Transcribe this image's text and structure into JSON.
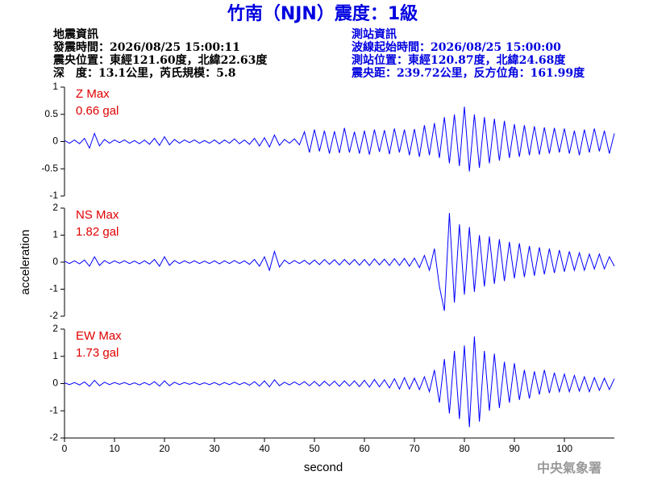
{
  "header": {
    "title": "竹南（NJN）震度：1級",
    "event_info": [
      "地震資訊",
      "發震時間：2026/08/25 15:00:11",
      "震央位置：東經121.60度，北緯22.63度",
      "深　度：13.1公里，芮氏規模：5.8"
    ],
    "station_info": [
      "測站資訊",
      "波線起始時間：2026/08/25 15:00:00",
      "測站位置：東經120.87度，北緯24.68度",
      "震央距：239.72公里，反方位角：161.99度"
    ],
    "footer": "中央氣象署"
  },
  "chart_data": [
    {
      "type": "line",
      "annotations": [
        "Z Max",
        "0.66 gal"
      ],
      "x": [
        0,
        1,
        2,
        3,
        4,
        5,
        6,
        7,
        8,
        9,
        10,
        11,
        12,
        13,
        14,
        15,
        16,
        17,
        18,
        19,
        20,
        21,
        22,
        23,
        24,
        25,
        26,
        27,
        28,
        29,
        30,
        31,
        32,
        33,
        34,
        35,
        36,
        37,
        38,
        39,
        40,
        41,
        42,
        43,
        44,
        45,
        46,
        47,
        48,
        49,
        50,
        51,
        52,
        53,
        54,
        55,
        56,
        57,
        58,
        59,
        60,
        61,
        62,
        63,
        64,
        65,
        66,
        67,
        68,
        69,
        70,
        71,
        72,
        73,
        74,
        75,
        76,
        77,
        78,
        79,
        80,
        81,
        82,
        83,
        84,
        85,
        86,
        87,
        88,
        89,
        90,
        91,
        92,
        93,
        94,
        95,
        96,
        97,
        98,
        99,
        100,
        101,
        102,
        103,
        104,
        105,
        106,
        107,
        108,
        109,
        110
      ],
      "series": [
        {
          "color": "#0000ff",
          "values": [
            0.02,
            -0.03,
            0.03,
            -0.04,
            0.06,
            -0.12,
            0.15,
            -0.08,
            0.04,
            -0.03,
            0.03,
            -0.02,
            0.03,
            -0.03,
            0.02,
            -0.04,
            0.03,
            -0.05,
            0.06,
            -0.07,
            0.09,
            -0.06,
            0.04,
            -0.03,
            0.03,
            -0.02,
            0.03,
            -0.03,
            0.02,
            -0.03,
            0.03,
            -0.04,
            0.03,
            -0.03,
            0.05,
            -0.04,
            0.03,
            -0.05,
            0.06,
            -0.08,
            0.07,
            -0.1,
            0.12,
            -0.07,
            0.04,
            -0.03,
            0.05,
            -0.06,
            0.18,
            -0.2,
            0.22,
            -0.18,
            0.2,
            -0.22,
            0.19,
            -0.21,
            0.25,
            -0.2,
            0.18,
            -0.22,
            0.2,
            -0.24,
            0.22,
            -0.19,
            0.21,
            -0.23,
            0.24,
            -0.2,
            0.22,
            -0.25,
            0.23,
            -0.28,
            0.3,
            -0.25,
            0.34,
            -0.3,
            0.45,
            -0.4,
            0.5,
            -0.45,
            0.64,
            -0.55,
            0.5,
            -0.48,
            0.45,
            -0.4,
            0.42,
            -0.35,
            0.38,
            -0.3,
            0.32,
            -0.28,
            0.3,
            -0.25,
            0.28,
            -0.24,
            0.26,
            -0.22,
            0.25,
            -0.2,
            0.24,
            -0.22,
            0.2,
            -0.25,
            0.22,
            -0.2,
            0.24,
            -0.18,
            0.2,
            -0.22,
            0.15
          ]
        }
      ],
      "xlim": [
        0,
        110
      ],
      "ylim": [
        -1,
        1
      ],
      "yticks": [
        1,
        0.5,
        0,
        -0.5,
        -1
      ]
    },
    {
      "type": "line",
      "annotations": [
        "NS Max",
        "1.82 gal"
      ],
      "ylabel": "acceleration",
      "x": [
        0,
        1,
        2,
        3,
        4,
        5,
        6,
        7,
        8,
        9,
        10,
        11,
        12,
        13,
        14,
        15,
        16,
        17,
        18,
        19,
        20,
        21,
        22,
        23,
        24,
        25,
        26,
        27,
        28,
        29,
        30,
        31,
        32,
        33,
        34,
        35,
        36,
        37,
        38,
        39,
        40,
        41,
        42,
        43,
        44,
        45,
        46,
        47,
        48,
        49,
        50,
        51,
        52,
        53,
        54,
        55,
        56,
        57,
        58,
        59,
        60,
        61,
        62,
        63,
        64,
        65,
        66,
        67,
        68,
        69,
        70,
        71,
        72,
        73,
        74,
        75,
        76,
        77,
        78,
        79,
        80,
        81,
        82,
        83,
        84,
        85,
        86,
        87,
        88,
        89,
        90,
        91,
        92,
        93,
        94,
        95,
        96,
        97,
        98,
        99,
        100,
        101,
        102,
        103,
        104,
        105,
        106,
        107,
        108,
        109,
        110
      ],
      "series": [
        {
          "color": "#0000ff",
          "values": [
            0.04,
            -0.05,
            0.05,
            -0.06,
            0.08,
            -0.15,
            0.2,
            -0.12,
            0.06,
            -0.05,
            0.05,
            -0.04,
            0.05,
            -0.05,
            0.04,
            -0.06,
            0.05,
            -0.07,
            0.1,
            -0.15,
            0.2,
            -0.12,
            0.06,
            -0.05,
            0.05,
            -0.04,
            0.05,
            -0.05,
            0.04,
            -0.05,
            0.05,
            -0.06,
            0.05,
            -0.05,
            0.06,
            -0.05,
            0.05,
            -0.08,
            0.1,
            -0.15,
            0.2,
            -0.3,
            0.4,
            -0.18,
            0.08,
            -0.06,
            0.06,
            -0.05,
            0.07,
            -0.08,
            0.08,
            -0.09,
            0.1,
            -0.08,
            0.09,
            -0.1,
            0.1,
            -0.09,
            0.1,
            -0.11,
            0.1,
            -0.12,
            0.12,
            -0.1,
            0.11,
            -0.12,
            0.13,
            -0.12,
            0.14,
            -0.15,
            0.15,
            -0.2,
            0.25,
            -0.3,
            0.5,
            -0.9,
            -1.8,
            1.82,
            -1.5,
            1.4,
            -1.2,
            1.3,
            -1.1,
            1.0,
            -0.9,
            0.95,
            -0.8,
            0.85,
            -0.7,
            0.75,
            -0.6,
            0.7,
            -0.55,
            0.6,
            -0.5,
            0.55,
            -0.45,
            0.5,
            -0.4,
            0.45,
            -0.35,
            0.4,
            -0.3,
            0.35,
            -0.3,
            0.3,
            -0.25,
            0.3,
            -0.25,
            0.2,
            -0.15
          ]
        }
      ],
      "xlim": [
        0,
        110
      ],
      "ylim": [
        -2,
        2
      ],
      "yticks": [
        2,
        1,
        0,
        -1,
        -2
      ]
    },
    {
      "type": "line",
      "annotations": [
        "EW Max",
        "1.73 gal"
      ],
      "xlabel": "second",
      "x": [
        0,
        1,
        2,
        3,
        4,
        5,
        6,
        7,
        8,
        9,
        10,
        11,
        12,
        13,
        14,
        15,
        16,
        17,
        18,
        19,
        20,
        21,
        22,
        23,
        24,
        25,
        26,
        27,
        28,
        29,
        30,
        31,
        32,
        33,
        34,
        35,
        36,
        37,
        38,
        39,
        40,
        41,
        42,
        43,
        44,
        45,
        46,
        47,
        48,
        49,
        50,
        51,
        52,
        53,
        54,
        55,
        56,
        57,
        58,
        59,
        60,
        61,
        62,
        63,
        64,
        65,
        66,
        67,
        68,
        69,
        70,
        71,
        72,
        73,
        74,
        75,
        76,
        77,
        78,
        79,
        80,
        81,
        82,
        83,
        84,
        85,
        86,
        87,
        88,
        89,
        90,
        91,
        92,
        93,
        94,
        95,
        96,
        97,
        98,
        99,
        100,
        101,
        102,
        103,
        104,
        105,
        106,
        107,
        108,
        109,
        110
      ],
      "series": [
        {
          "color": "#0000ff",
          "values": [
            0.03,
            -0.04,
            0.04,
            -0.05,
            0.06,
            -0.1,
            0.12,
            -0.08,
            0.05,
            -0.04,
            0.04,
            -0.03,
            0.04,
            -0.04,
            0.03,
            -0.05,
            0.04,
            -0.05,
            0.07,
            -0.09,
            0.1,
            -0.08,
            0.05,
            -0.04,
            0.04,
            -0.03,
            0.04,
            -0.04,
            0.03,
            -0.04,
            0.04,
            -0.05,
            0.04,
            -0.04,
            0.05,
            -0.04,
            0.04,
            -0.06,
            0.07,
            -0.09,
            0.1,
            -0.12,
            0.14,
            -0.08,
            0.05,
            -0.05,
            0.06,
            -0.05,
            0.07,
            -0.08,
            0.08,
            -0.09,
            0.09,
            -0.08,
            0.09,
            -0.1,
            0.1,
            -0.09,
            0.1,
            -0.11,
            0.12,
            -0.13,
            0.15,
            -0.12,
            0.14,
            -0.16,
            0.18,
            -0.2,
            0.22,
            -0.2,
            0.2,
            -0.22,
            0.25,
            -0.3,
            0.5,
            -0.7,
            0.9,
            -1.1,
            1.2,
            -1.3,
            1.4,
            -1.6,
            1.73,
            -1.4,
            1.2,
            -1.0,
            1.1,
            -0.9,
            0.8,
            -0.7,
            0.75,
            -0.6,
            0.5,
            -0.55,
            0.45,
            -0.4,
            0.5,
            -0.35,
            0.4,
            -0.3,
            0.35,
            -0.3,
            0.3,
            -0.28,
            0.25,
            -0.3,
            0.22,
            -0.25,
            0.2,
            -0.22,
            0.18
          ]
        }
      ],
      "xlim": [
        0,
        110
      ],
      "ylim": [
        -2,
        2
      ],
      "yticks": [
        2,
        1,
        0,
        -1,
        -2
      ],
      "xticks": [
        0,
        10,
        20,
        30,
        40,
        50,
        60,
        70,
        80,
        90,
        100
      ]
    }
  ]
}
